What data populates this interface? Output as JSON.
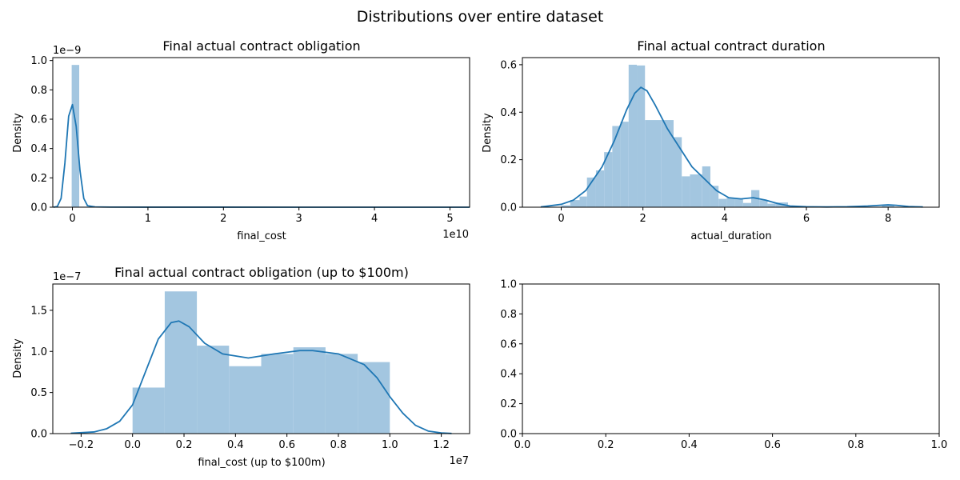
{
  "figure": {
    "title": "Distributions over entire dataset"
  },
  "colors": {
    "hist_fill": "#a3c6e0",
    "kde_line": "#1f77b4"
  },
  "chart_data": [
    {
      "id": "obligation",
      "type": "bar",
      "title": "Final actual contract obligation",
      "xlabel": "final_cost",
      "ylabel": "Density",
      "xlim": [
        -0.26,
        5.26
      ],
      "ylim": [
        0,
        1.02
      ],
      "x_ticks": [
        0,
        1,
        2,
        3,
        4,
        5
      ],
      "y_ticks": [
        0.0,
        0.2,
        0.4,
        0.6,
        0.8,
        1.0
      ],
      "x_tick_labels": [
        "0",
        "1",
        "2",
        "3",
        "4",
        "5"
      ],
      "y_tick_labels": [
        "0.0",
        "0.2",
        "0.4",
        "0.6",
        "0.8",
        "1.0"
      ],
      "x_offset_text": "1e10",
      "y_offset_text": "1e−9",
      "hist": [
        {
          "x0": -0.01,
          "x1": 0.09,
          "h": 0.97
        },
        {
          "x0": 0.09,
          "x1": 0.19,
          "h": 0.004
        }
      ],
      "kde": {
        "x": [
          -0.25,
          -0.2,
          -0.15,
          -0.1,
          -0.05,
          0.0,
          0.05,
          0.1,
          0.15,
          0.2,
          0.3,
          0.5,
          1.0,
          2.0,
          3.0,
          4.0,
          5.0,
          5.26
        ],
        "y": [
          0.0,
          0.005,
          0.06,
          0.3,
          0.62,
          0.7,
          0.55,
          0.25,
          0.06,
          0.01,
          0.002,
          0.0008,
          0.0004,
          0.0002,
          0.0001,
          0.0001,
          0.0001,
          0.0
        ]
      }
    },
    {
      "id": "duration",
      "type": "bar",
      "title": "Final actual contract duration",
      "xlabel": "actual_duration",
      "ylabel": "Density",
      "xlim": [
        -0.95,
        9.25
      ],
      "ylim": [
        0,
        0.63
      ],
      "x_ticks": [
        0,
        2,
        4,
        6,
        8
      ],
      "y_ticks": [
        0.0,
        0.2,
        0.4,
        0.6
      ],
      "x_tick_labels": [
        "0",
        "2",
        "4",
        "6",
        "8"
      ],
      "y_tick_labels": [
        "0.0",
        "0.2",
        "0.4",
        "0.6"
      ],
      "hist": [
        {
          "x0": 0.0,
          "x1": 0.22,
          "h": 0.008
        },
        {
          "x0": 0.22,
          "x1": 0.45,
          "h": 0.03
        },
        {
          "x0": 0.45,
          "x1": 0.63,
          "h": 0.045
        },
        {
          "x0": 0.63,
          "x1": 0.85,
          "h": 0.125
        },
        {
          "x0": 0.85,
          "x1": 1.05,
          "h": 0.155
        },
        {
          "x0": 1.05,
          "x1": 1.25,
          "h": 0.232
        },
        {
          "x0": 1.25,
          "x1": 1.45,
          "h": 0.342
        },
        {
          "x0": 1.45,
          "x1": 1.65,
          "h": 0.36
        },
        {
          "x0": 1.65,
          "x1": 1.85,
          "h": 0.6
        },
        {
          "x0": 1.85,
          "x1": 2.05,
          "h": 0.597
        },
        {
          "x0": 2.05,
          "x1": 2.45,
          "h": 0.367
        },
        {
          "x0": 2.45,
          "x1": 2.75,
          "h": 0.367
        },
        {
          "x0": 2.75,
          "x1": 2.95,
          "h": 0.295
        },
        {
          "x0": 2.95,
          "x1": 3.15,
          "h": 0.13
        },
        {
          "x0": 3.15,
          "x1": 3.45,
          "h": 0.138
        },
        {
          "x0": 3.45,
          "x1": 3.65,
          "h": 0.172
        },
        {
          "x0": 3.65,
          "x1": 3.85,
          "h": 0.09
        },
        {
          "x0": 3.85,
          "x1": 4.05,
          "h": 0.035
        },
        {
          "x0": 4.05,
          "x1": 4.25,
          "h": 0.04
        },
        {
          "x0": 4.25,
          "x1": 4.45,
          "h": 0.035
        },
        {
          "x0": 4.45,
          "x1": 4.65,
          "h": 0.018
        },
        {
          "x0": 4.65,
          "x1": 4.85,
          "h": 0.072
        },
        {
          "x0": 4.85,
          "x1": 5.05,
          "h": 0.03
        },
        {
          "x0": 5.05,
          "x1": 5.25,
          "h": 0.015
        },
        {
          "x0": 5.25,
          "x1": 5.55,
          "h": 0.02
        },
        {
          "x0": 5.55,
          "x1": 5.75,
          "h": 0.004
        },
        {
          "x0": 7.85,
          "x1": 8.15,
          "h": 0.01
        }
      ],
      "kde": {
        "x": [
          -0.5,
          0.0,
          0.3,
          0.6,
          1.0,
          1.3,
          1.6,
          1.8,
          1.95,
          2.1,
          2.3,
          2.6,
          2.9,
          3.2,
          3.5,
          3.8,
          4.1,
          4.4,
          4.7,
          5.0,
          5.3,
          5.6,
          6.0,
          6.5,
          7.0,
          7.5,
          7.8,
          8.0,
          8.2,
          8.5,
          8.85
        ],
        "y": [
          0.001,
          0.012,
          0.03,
          0.07,
          0.17,
          0.28,
          0.41,
          0.48,
          0.505,
          0.49,
          0.43,
          0.33,
          0.25,
          0.17,
          0.12,
          0.07,
          0.04,
          0.035,
          0.04,
          0.03,
          0.015,
          0.005,
          0.002,
          0.001,
          0.002,
          0.005,
          0.008,
          0.01,
          0.008,
          0.003,
          0.001
        ]
      }
    },
    {
      "id": "obligation100m",
      "type": "bar",
      "title": "Final actual contract obligation (up to $100m)",
      "xlabel": "final_cost (up to $100m)",
      "ylabel": "Density",
      "xlim": [
        -0.31,
        1.31
      ],
      "ylim": [
        0,
        1.82
      ],
      "x_ticks": [
        -0.2,
        0.0,
        0.2,
        0.4,
        0.6,
        0.8,
        1.0,
        1.2
      ],
      "y_ticks": [
        0.0,
        0.5,
        1.0,
        1.5
      ],
      "x_tick_labels": [
        "−0.2",
        "0.0",
        "0.2",
        "0.4",
        "0.6",
        "0.8",
        "1.0",
        "1.2"
      ],
      "y_tick_labels": [
        "0.0",
        "0.5",
        "1.0",
        "1.5"
      ],
      "x_offset_text": "1e7",
      "y_offset_text": "1e−7",
      "hist": [
        {
          "x0": 0.0,
          "x1": 0.125,
          "h": 0.56
        },
        {
          "x0": 0.125,
          "x1": 0.25,
          "h": 1.73
        },
        {
          "x0": 0.25,
          "x1": 0.375,
          "h": 1.07
        },
        {
          "x0": 0.375,
          "x1": 0.5,
          "h": 0.82
        },
        {
          "x0": 0.5,
          "x1": 0.625,
          "h": 0.97
        },
        {
          "x0": 0.625,
          "x1": 0.75,
          "h": 1.05
        },
        {
          "x0": 0.75,
          "x1": 0.875,
          "h": 0.97
        },
        {
          "x0": 0.875,
          "x1": 1.0,
          "h": 0.87
        }
      ],
      "kde": {
        "x": [
          -0.24,
          -0.15,
          -0.1,
          -0.05,
          0.0,
          0.05,
          0.1,
          0.15,
          0.18,
          0.22,
          0.28,
          0.35,
          0.45,
          0.55,
          0.65,
          0.7,
          0.8,
          0.9,
          0.95,
          1.0,
          1.05,
          1.1,
          1.15,
          1.2,
          1.24
        ],
        "y": [
          0.005,
          0.02,
          0.06,
          0.15,
          0.35,
          0.75,
          1.15,
          1.35,
          1.37,
          1.3,
          1.1,
          0.97,
          0.92,
          0.97,
          1.01,
          1.01,
          0.97,
          0.84,
          0.68,
          0.45,
          0.25,
          0.1,
          0.03,
          0.008,
          0.002
        ]
      }
    },
    {
      "id": "empty",
      "type": "bar",
      "title": "",
      "xlabel": "",
      "ylabel": "",
      "xlim": [
        0,
        1
      ],
      "ylim": [
        0,
        1
      ],
      "x_ticks": [
        0.0,
        0.2,
        0.4,
        0.6,
        0.8,
        1.0
      ],
      "y_ticks": [
        0.0,
        0.2,
        0.4,
        0.6,
        0.8,
        1.0
      ],
      "x_tick_labels": [
        "0.0",
        "0.2",
        "0.4",
        "0.6",
        "0.8",
        "1.0"
      ],
      "y_tick_labels": [
        "0.0",
        "0.2",
        "0.4",
        "0.6",
        "0.8",
        "1.0"
      ],
      "hist": [],
      "kde": {
        "x": [],
        "y": []
      }
    }
  ]
}
